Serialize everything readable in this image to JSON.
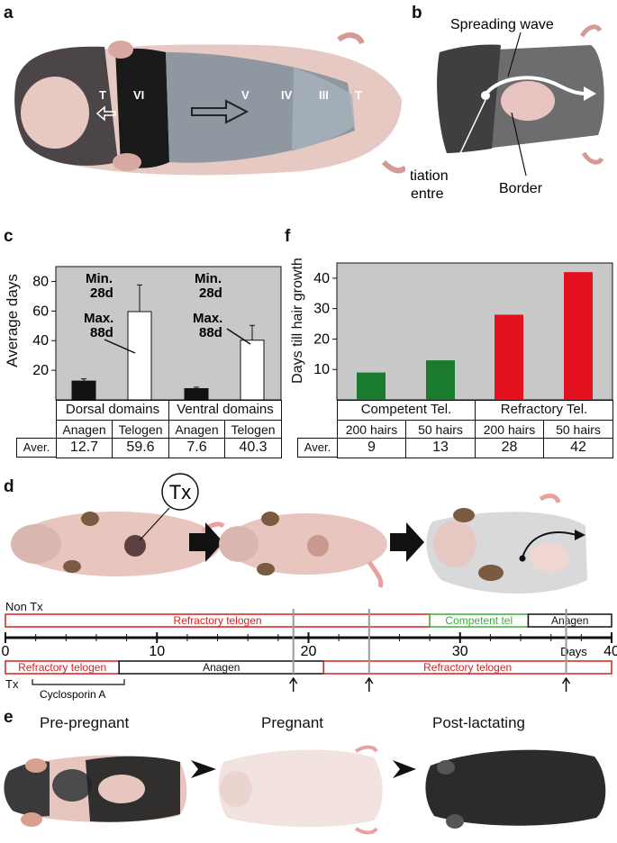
{
  "panel_labels": {
    "a": "a",
    "b": "b",
    "c": "c",
    "d": "d",
    "e": "e",
    "f": "f"
  },
  "panel_a": {
    "labels": [
      "T",
      "VI",
      "V",
      "IV",
      "III",
      "T"
    ]
  },
  "panel_b": {
    "spreading_wave": "Spreading wave",
    "initiation_line1": "Initiation",
    "initiation_line2": "centre",
    "border": "Border"
  },
  "panel_c": {
    "ylabel": "Average days",
    "yticks": [
      "20",
      "40",
      "60",
      "80"
    ],
    "annotations": [
      {
        "min": "Min.",
        "min_val": "28d",
        "max": "Max.",
        "max_val": "88d"
      },
      {
        "min": "Min.",
        "min_val": "28d",
        "max": "Max.",
        "max_val": "88d"
      }
    ],
    "groups": [
      "Dorsal domains",
      "Ventral domains"
    ],
    "phases": [
      "Anagen",
      "Telogen",
      "Anagen",
      "Telogen"
    ],
    "row_label": "Aver.",
    "averages": [
      "12.7",
      "59.6",
      "7.6",
      "40.3"
    ]
  },
  "panel_f": {
    "ylabel": "Days till hair growth",
    "yticks": [
      "10",
      "20",
      "30",
      "40"
    ],
    "groups": [
      "Competent Tel.",
      "Refractory Tel."
    ],
    "conditions": [
      "200 hairs",
      "50 hairs",
      "200 hairs",
      "50 hairs"
    ],
    "row_label": "Aver.",
    "averages": [
      "9",
      "13",
      "28",
      "42"
    ]
  },
  "chart_data": [
    {
      "type": "bar",
      "ylabel": "Average days",
      "ylim": [
        0,
        90
      ],
      "categories": [
        "Dorsal domains Anagen",
        "Dorsal domains Telogen",
        "Ventral domains Anagen",
        "Ventral domains Telogen"
      ],
      "values": [
        12.7,
        59.6,
        7.6,
        40.3
      ],
      "errors": [
        1.5,
        18,
        1,
        10
      ],
      "colors": [
        "#111111",
        "#ffffff",
        "#111111",
        "#ffffff"
      ],
      "background": "#c8c8c8"
    },
    {
      "type": "bar",
      "ylabel": "Days till hair growth",
      "ylim": [
        0,
        45
      ],
      "categories": [
        "Competent Tel. 200 hairs",
        "Competent Tel. 50 hairs",
        "Refractory Tel. 200 hairs",
        "Refractory Tel. 50 hairs"
      ],
      "values": [
        9,
        13,
        28,
        42
      ],
      "colors": [
        "#1a7a2e",
        "#1a7a2e",
        "#e3101e",
        "#e3101e"
      ],
      "background": "#c8c8c8"
    }
  ],
  "panel_d": {
    "tx_circle": "Tx",
    "non_tx_label": "Non Tx",
    "tx_label": "Tx",
    "non_tx_bars": [
      {
        "label": "Refractory telogen",
        "start": 0,
        "end": 28,
        "color": "#d81e1e"
      },
      {
        "label": "Competent tel",
        "start": 28,
        "end": 34.5,
        "color": "#3cae3c"
      },
      {
        "label": "Anagen",
        "start": 34.5,
        "end": 40,
        "color": "#111111"
      }
    ],
    "tx_bars": [
      {
        "label": "Refractory telogen",
        "start": 0,
        "end": 7.5,
        "color": "#d81e1e"
      },
      {
        "label": "Anagen",
        "start": 7.5,
        "end": 21,
        "color": "#111111"
      },
      {
        "label": "Refractory telogen",
        "start": 21,
        "end": 40,
        "color": "#d81e1e"
      }
    ],
    "axis_ticks": [
      "0",
      "10",
      "20",
      "30",
      "40"
    ],
    "axis_unit": "Days",
    "cyclosporin": "Cyclosporin A",
    "markers": [
      19,
      24,
      37
    ]
  },
  "panel_e": {
    "pre": "Pre-pregnant",
    "pregnant": "Pregnant",
    "post": "Post-lactating"
  }
}
